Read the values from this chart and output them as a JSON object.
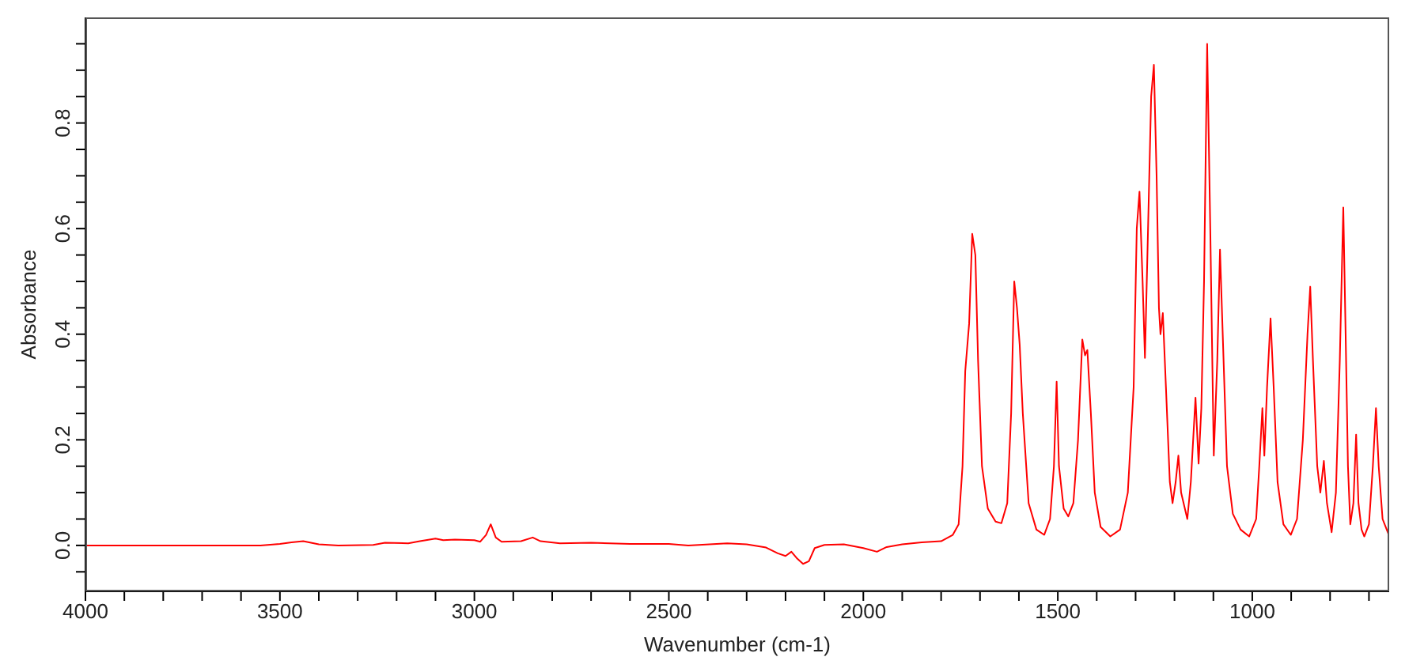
{
  "chart_data": {
    "type": "line",
    "xlabel": "Wavenumber (cm-1)",
    "ylabel": "Absorbance",
    "xlim": [
      4000,
      648
    ],
    "ylim": [
      -0.087,
      1.0
    ],
    "xticks": [
      4000,
      {
        "value": 3900,
        "label": null
      },
      {
        "value": 3800,
        "label": null
      },
      {
        "value": 3700,
        "label": null
      },
      {
        "value": 3600,
        "label": null
      },
      3500,
      {
        "value": 3400,
        "label": null
      },
      {
        "value": 3300,
        "label": null
      },
      {
        "value": 3200,
        "label": null
      },
      {
        "value": 3100,
        "label": null
      },
      3000,
      {
        "value": 2900,
        "label": null
      },
      {
        "value": 2800,
        "label": null
      },
      {
        "value": 2700,
        "label": null
      },
      {
        "value": 2600,
        "label": null
      },
      2500,
      {
        "value": 2400,
        "label": null
      },
      {
        "value": 2300,
        "label": null
      },
      {
        "value": 2200,
        "label": null
      },
      {
        "value": 2100,
        "label": null
      },
      2000,
      {
        "value": 1900,
        "label": null
      },
      {
        "value": 1800,
        "label": null
      },
      {
        "value": 1700,
        "label": null
      },
      {
        "value": 1600,
        "label": null
      },
      1500,
      {
        "value": 1400,
        "label": null
      },
      {
        "value": 1300,
        "label": null
      },
      {
        "value": 1200,
        "label": null
      },
      {
        "value": 1100,
        "label": null
      },
      1000,
      {
        "value": 900,
        "label": null
      },
      {
        "value": 800,
        "label": null
      },
      {
        "value": 700,
        "label": null
      }
    ],
    "yticks": [
      {
        "value": -0.05,
        "label": null
      },
      {
        "value": 0,
        "label": "0.0"
      },
      {
        "value": 0.05,
        "label": null
      },
      {
        "value": 0.1,
        "label": null
      },
      {
        "value": 0.15,
        "label": null
      },
      0.2,
      {
        "value": 0.25,
        "label": null
      },
      {
        "value": 0.3,
        "label": null
      },
      {
        "value": 0.35,
        "label": null
      },
      0.4,
      {
        "value": 0.45,
        "label": null
      },
      {
        "value": 0.5,
        "label": null
      },
      {
        "value": 0.55,
        "label": null
      },
      0.6,
      {
        "value": 0.65,
        "label": null
      },
      {
        "value": 0.7,
        "label": null
      },
      {
        "value": 0.75,
        "label": null
      },
      0.8,
      {
        "value": 0.85,
        "label": null
      },
      {
        "value": 0.9,
        "label": null
      },
      {
        "value": 0.95,
        "label": null
      }
    ],
    "grid": false,
    "marker": "none",
    "series": [
      {
        "color": "#ff0000",
        "x": [
          4000,
          3550,
          3500,
          3470,
          3440,
          3400,
          3350,
          3260,
          3230,
          3170,
          3140,
          3100,
          3080,
          3050,
          3000,
          2985,
          2970,
          2958,
          2945,
          2930,
          2880,
          2850,
          2830,
          2780,
          2700,
          2600,
          2500,
          2450,
          2350,
          2300,
          2250,
          2220,
          2200,
          2185,
          2170,
          2155,
          2140,
          2125,
          2100,
          2050,
          2000,
          1965,
          1940,
          1900,
          1850,
          1800,
          1770,
          1755,
          1745,
          1738,
          1728,
          1720,
          1712,
          1705,
          1695,
          1680,
          1660,
          1645,
          1630,
          1620,
          1612,
          1605,
          1598,
          1590,
          1575,
          1555,
          1535,
          1520,
          1510,
          1503,
          1497,
          1485,
          1473,
          1460,
          1448,
          1437,
          1430,
          1424,
          1415,
          1405,
          1390,
          1365,
          1340,
          1320,
          1305,
          1297,
          1290,
          1282,
          1276,
          1268,
          1260,
          1253,
          1246,
          1240,
          1236,
          1230,
          1222,
          1212,
          1205,
          1197,
          1190,
          1183,
          1167,
          1158,
          1146,
          1138,
          1131,
          1124,
          1116,
          1108,
          1099,
          1090,
          1083,
          1076,
          1065,
          1050,
          1030,
          1008,
          990,
          982,
          974,
          969,
          962,
          953,
          945,
          935,
          920,
          901,
          885,
          870,
          858,
          851,
          844,
          833,
          825,
          816,
          808,
          796,
          785,
          775,
          766,
          760,
          754,
          748,
          740,
          733,
          727,
          719,
          712,
          700,
          690,
          682,
          675,
          665,
          649
        ],
        "values": [
          0,
          0,
          0.003,
          0.006,
          0.008,
          0.002,
          0,
          0.001,
          0.005,
          0.004,
          0.008,
          0.013,
          0.01,
          0.011,
          0.01,
          0.007,
          0.02,
          0.04,
          0.015,
          0.007,
          0.008,
          0.015,
          0.008,
          0.004,
          0.005,
          0.003,
          0.003,
          0,
          0.004,
          0.002,
          -0.004,
          -0.015,
          -0.02,
          -0.012,
          -0.025,
          -0.035,
          -0.03,
          -0.005,
          0.001,
          0.002,
          -0.005,
          -0.012,
          -0.003,
          0.002,
          0.006,
          0.008,
          0.02,
          0.04,
          0.15,
          0.33,
          0.42,
          0.59,
          0.55,
          0.35,
          0.15,
          0.07,
          0.045,
          0.042,
          0.08,
          0.25,
          0.5,
          0.45,
          0.38,
          0.25,
          0.08,
          0.03,
          0.02,
          0.05,
          0.15,
          0.31,
          0.15,
          0.07,
          0.055,
          0.08,
          0.2,
          0.39,
          0.36,
          0.37,
          0.25,
          0.1,
          0.035,
          0.017,
          0.03,
          0.1,
          0.3,
          0.6,
          0.67,
          0.5,
          0.355,
          0.6,
          0.85,
          0.91,
          0.7,
          0.45,
          0.4,
          0.44,
          0.3,
          0.12,
          0.08,
          0.12,
          0.17,
          0.1,
          0.05,
          0.12,
          0.28,
          0.155,
          0.26,
          0.5,
          0.95,
          0.6,
          0.17,
          0.35,
          0.56,
          0.4,
          0.15,
          0.06,
          0.03,
          0.017,
          0.05,
          0.15,
          0.26,
          0.17,
          0.3,
          0.43,
          0.3,
          0.12,
          0.04,
          0.02,
          0.05,
          0.2,
          0.4,
          0.49,
          0.35,
          0.15,
          0.1,
          0.16,
          0.08,
          0.025,
          0.1,
          0.35,
          0.64,
          0.4,
          0.15,
          0.04,
          0.08,
          0.21,
          0.08,
          0.03,
          0.017,
          0.04,
          0.15,
          0.26,
          0.15,
          0.05,
          0.02
        ]
      }
    ]
  }
}
